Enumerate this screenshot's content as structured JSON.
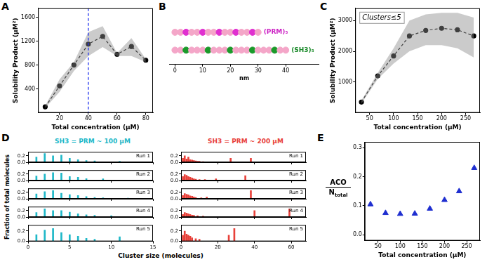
{
  "chart_data": [
    {
      "panel": "A",
      "type": "line",
      "xlabel": "Total concentration (µM)",
      "ylabel": "Solubility Product (µM²)",
      "xlim": [
        5,
        85
      ],
      "xticks": [
        20,
        40,
        60,
        80
      ],
      "ylim": [
        0,
        1750
      ],
      "yticks": [
        400,
        800,
        1200,
        1600
      ],
      "grid": false,
      "reference_line": {
        "x": 40,
        "color": "#2233ee",
        "line_style": "dashed"
      },
      "series": [
        {
          "x": [
            10,
            20,
            30,
            40,
            50,
            60,
            70,
            80
          ],
          "values": [
            100,
            450,
            800,
            1150,
            1280,
            980,
            1110,
            880
          ],
          "error_low": [
            80,
            350,
            700,
            950,
            1100,
            950,
            950,
            850
          ],
          "error_high": [
            120,
            560,
            850,
            1350,
            1450,
            1000,
            1250,
            900
          ],
          "color": "#000000",
          "marker": "circle",
          "line_style": "dashed"
        }
      ]
    },
    {
      "panel": "B",
      "type": "scatter",
      "xlabel": "nm",
      "xlim": [
        -2,
        52
      ],
      "xticks": [
        0,
        10,
        20,
        30,
        40
      ],
      "tick_labels": "x",
      "grid": false,
      "rows": [
        {
          "label": "(PRM)₅",
          "color": "#cc22c4",
          "line_style": "dashed",
          "x": [
            0,
            2,
            4,
            6,
            8,
            10,
            12,
            14,
            16,
            18,
            20,
            22,
            24,
            26,
            28,
            30
          ],
          "colors": [
            "#f4a6c8",
            "#f4a6c8",
            "#e030d0",
            "#f4a6c8",
            "#f4a6c8",
            "#e030d0",
            "#f4a6c8",
            "#f4a6c8",
            "#e030d0",
            "#f4a6c8",
            "#f4a6c8",
            "#e030d0",
            "#f4a6c8",
            "#f4a6c8",
            "#e030d0",
            "#f4a6c8"
          ]
        },
        {
          "label": "(SH3)₅",
          "color": "#1a8a2a",
          "line_style": "dashed",
          "x": [
            0,
            2,
            4,
            6,
            8,
            10,
            12,
            14,
            16,
            18,
            20,
            22,
            24,
            26,
            28,
            30,
            32,
            34,
            36,
            38,
            40
          ],
          "colors": [
            "#f4a6c8",
            "#f4a6c8",
            "#1a9a2a",
            "#f4a6c8",
            "#f4a6c8",
            "#f4a6c8",
            "#1a9a2a",
            "#f4a6c8",
            "#f4a6c8",
            "#f4a6c8",
            "#1a9a2a",
            "#f4a6c8",
            "#f4a6c8",
            "#f4a6c8",
            "#1a9a2a",
            "#f4a6c8",
            "#f4a6c8",
            "#f4a6c8",
            "#1a9a2a",
            "#f4a6c8",
            "#f4a6c8"
          ]
        }
      ]
    },
    {
      "panel": "C",
      "type": "line",
      "xlabel": "Total concentration (µM)",
      "ylabel": "Solubility Product (µM²)",
      "annotation": "Clusters≤5",
      "xlim": [
        20,
        280
      ],
      "xticks": [
        50,
        100,
        150,
        200,
        250
      ],
      "ylim": [
        0,
        3400
      ],
      "yticks": [
        1000,
        2000,
        3000
      ],
      "grid": false,
      "series": [
        {
          "x": [
            33,
            67,
            100,
            133,
            167,
            200,
            233,
            267
          ],
          "values": [
            350,
            1200,
            1850,
            2500,
            2680,
            2750,
            2700,
            2500
          ],
          "error_low": [
            300,
            1100,
            1600,
            2000,
            2200,
            2200,
            2100,
            1800
          ],
          "error_high": [
            400,
            1300,
            2100,
            3000,
            3200,
            3250,
            3250,
            3100
          ],
          "color": "#000000",
          "marker": "circle",
          "line_style": "dashed"
        }
      ]
    },
    {
      "panel": "D",
      "type": "bar",
      "xlabel": "Cluster size (molecules)",
      "ylabel": "Fraction of total molecules",
      "grid": false,
      "columns": [
        {
          "title": "SH3 = PRM ~ 100 µM",
          "color": "#1fb8c8",
          "xlim": [
            0,
            15
          ],
          "xticks": [
            0,
            5,
            10,
            15
          ],
          "ylim": [
            0,
            0.32
          ],
          "yticks": [
            {
              "value": 0,
              "label": "0.0"
            },
            {
              "value": 0.2,
              "label": "0.2"
            }
          ],
          "runs": [
            {
              "name": "Run 1",
              "tick_labels": "y",
              "x": [
                1,
                2,
                3,
                4,
                5,
                6,
                7,
                8,
                11
              ],
              "values": [
                0.16,
                0.27,
                0.2,
                0.22,
                0.12,
                0.08,
                0.05,
                0.04,
                0.03
              ]
            },
            {
              "name": "Run 2",
              "tick_labels": "y",
              "x": [
                1,
                2,
                3,
                4,
                5,
                6,
                7,
                9
              ],
              "values": [
                0.14,
                0.2,
                0.24,
                0.23,
                0.12,
                0.1,
                0.06,
                0.05
              ]
            },
            {
              "name": "Run 3",
              "tick_labels": "y",
              "x": [
                1,
                2,
                3,
                4,
                5,
                6,
                7,
                8,
                9,
                12
              ],
              "values": [
                0.15,
                0.22,
                0.25,
                0.17,
                0.13,
                0.1,
                0.07,
                0.04,
                0.03,
                0.02
              ]
            },
            {
              "name": "Run 4",
              "tick_labels": "y",
              "x": [
                1,
                2,
                3,
                4,
                5,
                6,
                7,
                8,
                10
              ],
              "values": [
                0.14,
                0.25,
                0.2,
                0.2,
                0.15,
                0.1,
                0.07,
                0.05,
                0.04
              ]
            },
            {
              "name": "Run 5",
              "x": [
                1,
                2,
                3,
                4,
                5,
                6,
                7,
                8,
                11
              ],
              "values": [
                0.13,
                0.22,
                0.25,
                0.17,
                0.13,
                0.1,
                0.06,
                0.04,
                0.09
              ]
            }
          ]
        },
        {
          "title": "SH3 = PRM ~ 200 µM",
          "color": "#e8413a",
          "xlim": [
            0,
            68
          ],
          "xticks": [
            0,
            20,
            40,
            60
          ],
          "ylim": [
            0,
            0.32
          ],
          "yticks": [
            {
              "value": 0,
              "label": "0.0"
            },
            {
              "value": 0.2,
              "label": "0.2"
            }
          ],
          "runs": [
            {
              "name": "Run 1",
              "tick_labels": "y",
              "x": [
                1,
                2,
                3,
                4,
                5,
                6,
                7,
                8,
                9,
                10,
                12,
                27,
                38
              ],
              "values": [
                0.12,
                0.2,
                0.1,
                0.16,
                0.08,
                0.07,
                0.05,
                0.04,
                0.03,
                0.03,
                0.02,
                0.12,
                0.12
              ]
            },
            {
              "name": "Run 2",
              "tick_labels": "y",
              "x": [
                1,
                2,
                3,
                4,
                5,
                6,
                7,
                8,
                10,
                13,
                19,
                35
              ],
              "values": [
                0.12,
                0.18,
                0.16,
                0.12,
                0.1,
                0.08,
                0.05,
                0.04,
                0.03,
                0.03,
                0.05,
                0.15
              ]
            },
            {
              "name": "Run 3",
              "tick_labels": "y",
              "x": [
                1,
                2,
                3,
                4,
                5,
                6,
                7,
                8,
                11,
                14,
                38
              ],
              "values": [
                0.1,
                0.16,
                0.14,
                0.12,
                0.09,
                0.08,
                0.06,
                0.04,
                0.03,
                0.05,
                0.25
              ]
            },
            {
              "name": "Run 4",
              "tick_labels": "y",
              "x": [
                1,
                2,
                3,
                4,
                5,
                6,
                7,
                9,
                12,
                40,
                59
              ],
              "values": [
                0.08,
                0.14,
                0.12,
                0.1,
                0.08,
                0.06,
                0.05,
                0.04,
                0.03,
                0.2,
                0.25
              ]
            },
            {
              "name": "Run 5",
              "x": [
                1,
                2,
                3,
                4,
                5,
                6,
                8,
                10,
                26,
                29
              ],
              "values": [
                0.12,
                0.2,
                0.14,
                0.12,
                0.1,
                0.07,
                0.05,
                0.04,
                0.12,
                0.25
              ]
            }
          ]
        }
      ]
    },
    {
      "panel": "E",
      "type": "scatter",
      "xlabel": "Total concentration (µM)",
      "ylabel": {
        "numerator": "ACO",
        "denominator": "N",
        "denominator_sub": "total"
      },
      "xlim": [
        20,
        280
      ],
      "xticks": [
        50,
        100,
        150,
        200,
        250
      ],
      "ylim": [
        -0.02,
        0.32
      ],
      "yticks": [
        {
          "value": 0,
          "label": "0.0"
        },
        {
          "value": 0.1,
          "label": "0.1"
        },
        {
          "value": 0.2,
          "label": "0.2"
        },
        {
          "value": 0.3,
          "label": "0.3"
        }
      ],
      "grid": false,
      "series": [
        {
          "x": [
            33,
            67,
            100,
            133,
            167,
            200,
            233,
            267
          ],
          "values": [
            0.105,
            0.075,
            0.072,
            0.073,
            0.09,
            0.12,
            0.15,
            0.23
          ],
          "color": "#1f2fd0",
          "marker": "triangle"
        }
      ]
    }
  ]
}
